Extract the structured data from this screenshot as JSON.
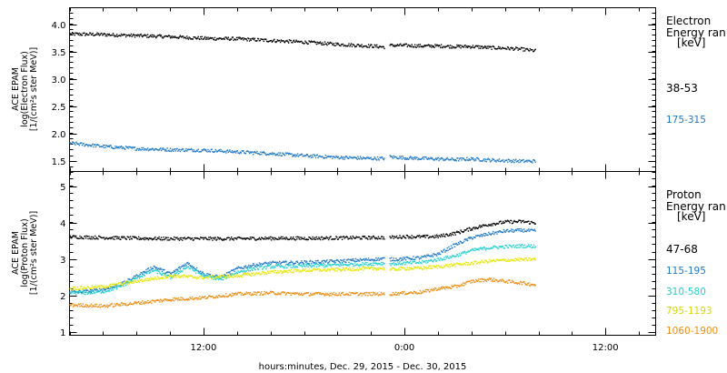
{
  "xlabel": "hours:minutes, Dec. 29, 2015 - Dec. 30, 2015",
  "chart_data": [
    {
      "type": "scatter",
      "panel": "electron",
      "ylabel": [
        "ACE EPAM",
        "log(Electron Flux)",
        "[1/(cm²s ster MeV)]"
      ],
      "ylim": [
        1.3,
        4.3
      ],
      "yticks": [
        "1.5",
        "2.0",
        "2.5",
        "3.0",
        "3.5",
        "4.0"
      ],
      "xlim": [
        4.0,
        39.0
      ],
      "xticks": [
        {
          "x": 12,
          "label": "12:00"
        },
        {
          "x": 24,
          "label": "0:00"
        },
        {
          "x": 36,
          "label": "12:00"
        }
      ],
      "legend_title": [
        "Electron",
        "Energy ran",
        "[keV]"
      ],
      "series": [
        {
          "name": "38-53",
          "color": "#000000",
          "x": [
            4.0,
            6.0,
            8.0,
            10.0,
            12.0,
            14.0,
            16.0,
            18.0,
            20.0,
            22.0,
            22.8
          ],
          "values": [
            3.83,
            3.82,
            3.8,
            3.78,
            3.75,
            3.74,
            3.71,
            3.68,
            3.64,
            3.61,
            3.59
          ]
        },
        {
          "name": "38-53",
          "color": "#000000",
          "x": [
            23.1,
            24.0,
            25.0,
            26.0,
            27.0,
            28.0,
            29.0,
            30.0,
            31.0,
            31.8
          ],
          "values": [
            3.62,
            3.62,
            3.61,
            3.61,
            3.6,
            3.6,
            3.58,
            3.57,
            3.55,
            3.52
          ]
        },
        {
          "name": "175-315",
          "color": "#1e78c8",
          "x": [
            4.0,
            6.0,
            8.0,
            10.0,
            12.0,
            14.0,
            16.0,
            18.0,
            20.0,
            22.0,
            22.8
          ],
          "values": [
            1.83,
            1.77,
            1.73,
            1.71,
            1.7,
            1.67,
            1.64,
            1.6,
            1.57,
            1.55,
            1.55
          ]
        },
        {
          "name": "175-315",
          "color": "#1e78c8",
          "x": [
            23.1,
            24.0,
            25.0,
            26.0,
            27.0,
            28.0,
            29.0,
            30.0,
            31.0,
            31.8
          ],
          "values": [
            1.58,
            1.56,
            1.55,
            1.54,
            1.53,
            1.54,
            1.52,
            1.51,
            1.5,
            1.5
          ]
        }
      ]
    },
    {
      "type": "scatter",
      "panel": "proton",
      "ylabel": [
        "ACE EPAM",
        "log(Proton Flux)",
        "[1/(cm²s ster MeV)]"
      ],
      "ylim": [
        0.9,
        5.4
      ],
      "yticks": [
        "1",
        "2",
        "3",
        "4",
        "5"
      ],
      "xlim": [
        4.0,
        39.0
      ],
      "xticks": [
        {
          "x": 12,
          "label": "12:00"
        },
        {
          "x": 24,
          "label": "0:00"
        },
        {
          "x": 36,
          "label": "12:00"
        }
      ],
      "legend_title": [
        "Proton",
        "Energy ran",
        "[keV]"
      ],
      "series": [
        {
          "name": "47-68",
          "color": "#000000",
          "x": [
            4.0,
            6.0,
            8.0,
            10.0,
            12.0,
            14.0,
            16.0,
            18.0,
            20.0,
            22.0,
            22.8
          ],
          "values": [
            3.62,
            3.6,
            3.58,
            3.57,
            3.57,
            3.57,
            3.58,
            3.58,
            3.59,
            3.6,
            3.6
          ]
        },
        {
          "name": "47-68",
          "color": "#000000",
          "x": [
            23.1,
            24.0,
            25.0,
            26.0,
            27.0,
            28.0,
            29.0,
            30.0,
            31.0,
            31.8
          ],
          "values": [
            3.6,
            3.63,
            3.62,
            3.63,
            3.72,
            3.85,
            3.96,
            4.03,
            4.04,
            4.0
          ]
        },
        {
          "name": "115-195",
          "color": "#1e78c8",
          "x": [
            4.0,
            5.0,
            6.0,
            7.0,
            8.0,
            9.0,
            10.0,
            11.0,
            12.0,
            13.0,
            14.0,
            15.0,
            16.0,
            18.0,
            20.0,
            22.0,
            22.8
          ],
          "values": [
            2.1,
            2.12,
            2.18,
            2.3,
            2.55,
            2.8,
            2.6,
            2.9,
            2.6,
            2.5,
            2.75,
            2.85,
            2.9,
            2.92,
            2.95,
            3.0,
            3.02
          ]
        },
        {
          "name": "115-195",
          "color": "#1e78c8",
          "x": [
            23.1,
            24.0,
            25.0,
            26.0,
            27.0,
            28.0,
            29.0,
            30.0,
            31.0,
            31.8
          ],
          "values": [
            3.0,
            3.02,
            3.05,
            3.15,
            3.4,
            3.6,
            3.7,
            3.78,
            3.8,
            3.78
          ]
        },
        {
          "name": "310-580",
          "color": "#20d0d0",
          "x": [
            4.0,
            5.0,
            6.0,
            7.0,
            8.0,
            9.0,
            10.0,
            11.0,
            12.0,
            13.0,
            14.0,
            15.0,
            16.0,
            18.0,
            20.0,
            22.0,
            22.8
          ],
          "values": [
            2.08,
            2.08,
            2.12,
            2.25,
            2.5,
            2.7,
            2.5,
            2.8,
            2.55,
            2.45,
            2.65,
            2.75,
            2.8,
            2.82,
            2.85,
            2.88,
            2.9
          ]
        },
        {
          "name": "310-580",
          "color": "#20d0d0",
          "x": [
            23.1,
            24.0,
            25.0,
            26.0,
            27.0,
            28.0,
            29.0,
            30.0,
            31.0,
            31.8
          ],
          "values": [
            2.88,
            2.9,
            2.92,
            3.0,
            3.1,
            3.25,
            3.32,
            3.35,
            3.37,
            3.36
          ]
        },
        {
          "name": "795-1193",
          "color": "#e6e600",
          "x": [
            4.0,
            6.0,
            8.0,
            10.0,
            12.0,
            14.0,
            16.0,
            18.0,
            20.0,
            22.0,
            22.8
          ],
          "values": [
            2.2,
            2.25,
            2.4,
            2.55,
            2.5,
            2.55,
            2.65,
            2.7,
            2.72,
            2.75,
            2.76
          ]
        },
        {
          "name": "795-1193",
          "color": "#e6e600",
          "x": [
            23.1,
            24.0,
            25.0,
            26.0,
            27.0,
            28.0,
            29.0,
            30.0,
            31.0,
            31.8
          ],
          "values": [
            2.72,
            2.75,
            2.76,
            2.8,
            2.85,
            2.9,
            2.95,
            2.98,
            3.0,
            3.0
          ]
        },
        {
          "name": "1060-1900",
          "color": "#f08c10",
          "x": [
            4.0,
            6.0,
            8.0,
            10.0,
            12.0,
            14.0,
            16.0,
            18.0,
            20.0,
            22.0,
            22.8
          ],
          "values": [
            1.75,
            1.72,
            1.8,
            1.9,
            1.95,
            2.05,
            2.08,
            2.05,
            2.05,
            2.05,
            2.05
          ]
        },
        {
          "name": "1060-1900",
          "color": "#f08c10",
          "x": [
            23.1,
            24.0,
            25.0,
            26.0,
            27.0,
            28.0,
            29.0,
            30.0,
            31.0,
            31.8
          ],
          "values": [
            2.05,
            2.08,
            2.1,
            2.2,
            2.25,
            2.4,
            2.45,
            2.4,
            2.35,
            2.3
          ]
        }
      ]
    }
  ]
}
